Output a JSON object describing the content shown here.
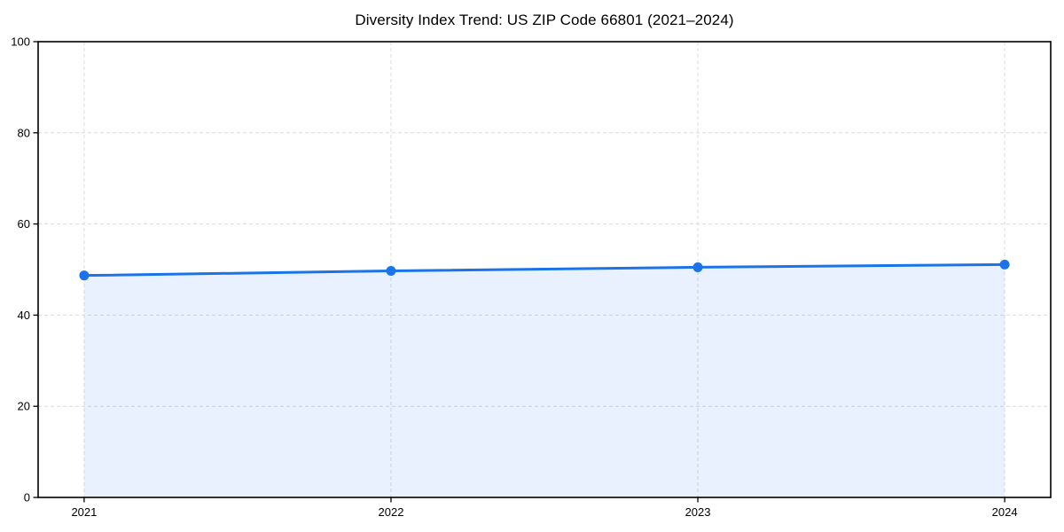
{
  "chart_data": {
    "type": "area",
    "title": "Diversity Index Trend: US ZIP Code 66801 (2021–2024)",
    "x": [
      2021,
      2022,
      2023,
      2024
    ],
    "categories": [
      "2021",
      "2022",
      "2023",
      "2024"
    ],
    "series": [
      {
        "name": "Diversity Index",
        "values": [
          48.7,
          49.7,
          50.5,
          51.1
        ]
      }
    ],
    "xlabel": "",
    "ylabel": "",
    "ylim": [
      0,
      100
    ],
    "yticks": [
      0,
      20,
      40,
      60,
      80,
      100
    ],
    "x_margin_fraction": 0.05,
    "grid": true,
    "grid_style": "dashed",
    "legend": "none",
    "colors": {
      "line": "#1a73e8",
      "marker": "#1a73e8",
      "area_fill": "#1a73e8",
      "area_fill_opacity": 0.1,
      "grid": "#dcdcdc",
      "frame": "#000000",
      "tick_label": "#000000",
      "title": "#000000",
      "background": "#ffffff"
    }
  }
}
